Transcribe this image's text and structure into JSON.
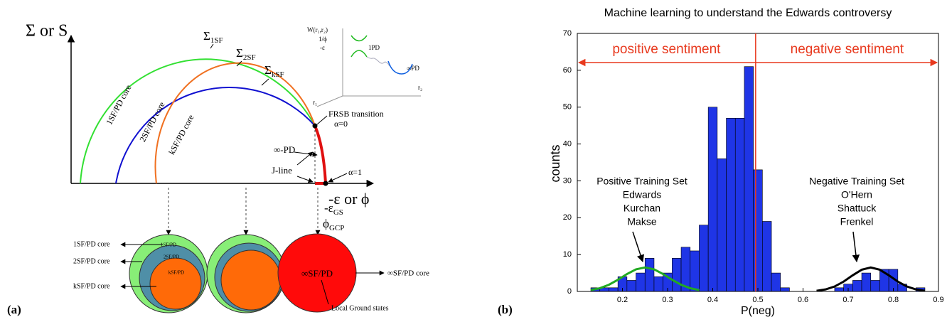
{
  "diagram": {
    "panel_label": "(a)",
    "y_axis_label": "Σ or S",
    "x_axis_label": "-ε or ϕ",
    "branches": [
      {
        "symbol": "Σ",
        "sub": "1SF",
        "core": "1SF/PD core"
      },
      {
        "symbol": "Σ",
        "sub": "2SF",
        "core": "2SF/PD core"
      },
      {
        "symbol": "Σ",
        "sub": "kSF",
        "core": "kSF/PD core"
      }
    ],
    "annotations": {
      "frsb": "FRSB transition",
      "alpha0": "α=0",
      "inf_pd": "∞-PD",
      "jline": "J-line",
      "alpha1": "α=1",
      "eps_gs": {
        "symbol": "-ε",
        "sub": "GS"
      },
      "phi_gcp": {
        "symbol": "ϕ",
        "sub": "GCP"
      }
    },
    "inset": {
      "w": "W(r₁,r₂)",
      "inv_phi": "1/ϕ",
      "neg_eps": "-ε",
      "r1": "r₁",
      "r2": "r₂",
      "one_pd": "1PD",
      "inf_pd": "∞PD"
    },
    "cores": {
      "labels": [
        "1SF/PD core",
        "2SF/PD core",
        "kSF/PD core"
      ],
      "inner": [
        "1SF/PD",
        "2SF/PD",
        "kSF/PD"
      ],
      "infinite": "∞SF/PD",
      "infinite_core": "∞SF/PD core",
      "ground": "Local Ground states"
    }
  },
  "chart_data": {
    "type": "histogram",
    "panel_label": "(b)",
    "title": "Machine learning to understand the Edwards controversy",
    "xlabel": "P(neg)",
    "ylabel": "counts",
    "bins": [
      0.13,
      0.15,
      0.17,
      0.19,
      0.21,
      0.23,
      0.25,
      0.27,
      0.29,
      0.31,
      0.33,
      0.35,
      0.37,
      0.39,
      0.41,
      0.43,
      0.45,
      0.47,
      0.49,
      0.51,
      0.53,
      0.55,
      0.57,
      0.59,
      0.61,
      0.63,
      0.65,
      0.67,
      0.69,
      0.71,
      0.73,
      0.75,
      0.77,
      0.79,
      0.81,
      0.83,
      0.85,
      0.87
    ],
    "values": [
      1,
      1,
      1,
      4,
      3,
      5,
      9,
      4,
      5,
      9,
      12,
      11,
      18,
      50,
      36,
      47,
      47,
      61,
      33,
      19,
      5,
      1,
      0,
      0,
      0,
      0,
      0,
      1,
      2,
      3,
      5,
      3,
      6,
      6,
      2,
      0,
      1
    ],
    "color": "#1f35e6",
    "xlim": [
      0.1,
      0.9
    ],
    "xticks": [
      0.2,
      0.3,
      0.4,
      0.5,
      0.6,
      0.7,
      0.8,
      0.9
    ],
    "ylim": [
      0,
      70
    ],
    "yticks": [
      0,
      10,
      20,
      30,
      40,
      50,
      60,
      70
    ],
    "vline": {
      "x": 0.495,
      "color": "#e8391e"
    },
    "regions": [
      "positive sentiment",
      "negative sentiment"
    ],
    "curves": [
      {
        "color": "#22aa22",
        "x": [
          0.13,
          0.15,
          0.17,
          0.19,
          0.21,
          0.23,
          0.25,
          0.27,
          0.29,
          0.31,
          0.33,
          0.35,
          0.37
        ],
        "values": [
          0.37,
          0.88,
          1.81,
          3.16,
          4.72,
          6.0,
          6.5,
          6.0,
          4.72,
          3.16,
          1.81,
          0.88,
          0.37
        ]
      },
      {
        "color": "#000000",
        "x": [
          0.63,
          0.65,
          0.67,
          0.69,
          0.71,
          0.73,
          0.75,
          0.77,
          0.79,
          0.81,
          0.83,
          0.85,
          0.87
        ],
        "values": [
          0.18,
          0.55,
          1.34,
          2.67,
          4.38,
          5.89,
          6.5,
          5.89,
          4.38,
          2.67,
          1.34,
          0.55,
          0.18
        ]
      }
    ],
    "annotations": [
      [
        "Positive Training Set",
        "Edwards",
        "Kurchan",
        "Makse"
      ],
      [
        "Negative Training Set",
        "O'Hern",
        "Shattuck",
        "Frenkel"
      ]
    ]
  }
}
